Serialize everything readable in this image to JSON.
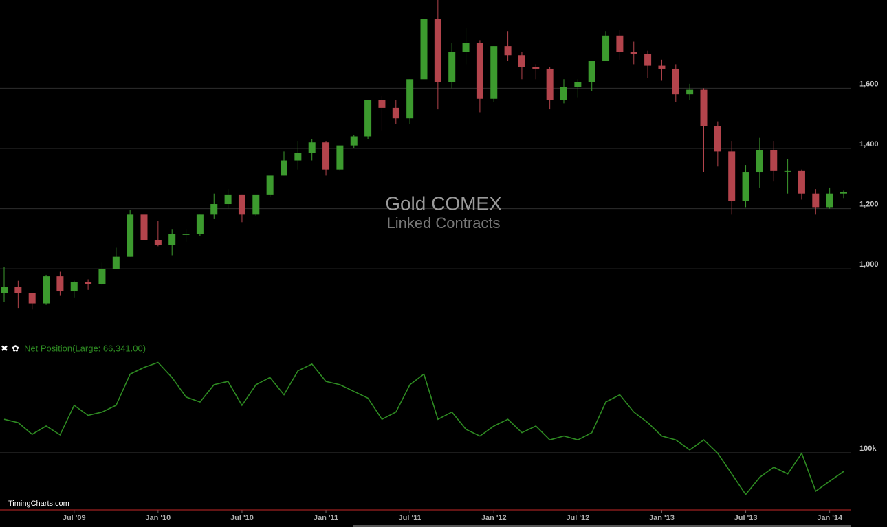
{
  "watermark": "TimingCharts.com",
  "chart_data": [
    {
      "type": "candlestick",
      "title": "Gold COMEX",
      "subtitle": "Linked Contracts",
      "x": [
        "2009-02",
        "2009-03",
        "2009-04",
        "2009-05",
        "2009-06",
        "2009-07",
        "2009-08",
        "2009-09",
        "2009-10",
        "2009-11",
        "2009-12",
        "2010-01",
        "2010-02",
        "2010-03",
        "2010-04",
        "2010-05",
        "2010-06",
        "2010-07",
        "2010-08",
        "2010-09",
        "2010-10",
        "2010-11",
        "2010-12",
        "2011-01",
        "2011-02",
        "2011-03",
        "2011-04",
        "2011-05",
        "2011-06",
        "2011-07",
        "2011-08",
        "2011-09",
        "2011-10",
        "2011-11",
        "2011-12",
        "2012-01",
        "2012-02",
        "2012-03",
        "2012-04",
        "2012-05",
        "2012-06",
        "2012-07",
        "2012-08",
        "2012-09",
        "2012-10",
        "2012-11",
        "2012-12",
        "2013-01",
        "2013-02",
        "2013-03",
        "2013-04",
        "2013-05",
        "2013-06",
        "2013-07",
        "2013-08",
        "2013-09",
        "2013-10",
        "2013-11",
        "2013-12",
        "2014-01",
        "2014-02"
      ],
      "open": [
        920,
        940,
        920,
        885,
        975,
        925,
        955,
        950,
        1000,
        1040,
        1180,
        1095,
        1080,
        1115,
        1115,
        1180,
        1215,
        1245,
        1180,
        1245,
        1310,
        1360,
        1385,
        1420,
        1330,
        1410,
        1440,
        1560,
        1535,
        1500,
        1630,
        1830,
        1620,
        1720,
        1750,
        1565,
        1740,
        1710,
        1670,
        1665,
        1560,
        1605,
        1620,
        1690,
        1775,
        1720,
        1715,
        1675,
        1665,
        1580,
        1595,
        1475,
        1390,
        1225,
        1320,
        1395,
        1325,
        1325,
        1250,
        1205,
        1250
      ],
      "high": [
        1005,
        960,
        920,
        980,
        990,
        960,
        965,
        1020,
        1070,
        1195,
        1225,
        1160,
        1130,
        1130,
        1180,
        1250,
        1265,
        1245,
        1240,
        1310,
        1390,
        1425,
        1430,
        1425,
        1410,
        1445,
        1560,
        1575,
        1560,
        1630,
        1900,
        1920,
        1750,
        1800,
        1760,
        1740,
        1790,
        1720,
        1680,
        1670,
        1630,
        1630,
        1690,
        1790,
        1795,
        1755,
        1725,
        1695,
        1680,
        1615,
        1600,
        1490,
        1425,
        1345,
        1435,
        1425,
        1365,
        1330,
        1265,
        1270,
        1260
      ],
      "low": [
        890,
        870,
        865,
        880,
        910,
        905,
        930,
        945,
        1000,
        1040,
        1080,
        1075,
        1045,
        1090,
        1110,
        1165,
        1200,
        1155,
        1175,
        1240,
        1310,
        1330,
        1360,
        1310,
        1325,
        1400,
        1430,
        1460,
        1480,
        1480,
        1620,
        1530,
        1600,
        1680,
        1520,
        1555,
        1690,
        1630,
        1630,
        1530,
        1550,
        1570,
        1590,
        1690,
        1695,
        1680,
        1635,
        1625,
        1555,
        1560,
        1320,
        1340,
        1180,
        1205,
        1270,
        1290,
        1250,
        1230,
        1180,
        1200,
        1235
      ],
      "close": [
        940,
        920,
        885,
        975,
        925,
        955,
        950,
        1000,
        1040,
        1180,
        1095,
        1080,
        1115,
        1115,
        1180,
        1215,
        1245,
        1180,
        1245,
        1310,
        1360,
        1385,
        1420,
        1330,
        1410,
        1440,
        1560,
        1535,
        1500,
        1630,
        1830,
        1620,
        1720,
        1750,
        1565,
        1740,
        1710,
        1670,
        1665,
        1560,
        1605,
        1620,
        1690,
        1775,
        1720,
        1715,
        1675,
        1665,
        1580,
        1595,
        1475,
        1390,
        1225,
        1320,
        1395,
        1325,
        1325,
        1250,
        1205,
        1250,
        1255
      ],
      "up_color": "#3c9a2e",
      "down_color": "#b3444c",
      "xlim": [
        "2009-02",
        "2014-02"
      ],
      "ylim": [
        820,
        1875
      ],
      "yticks": [
        {
          "value": 1000,
          "label": "1,000"
        },
        {
          "value": 1200,
          "label": "1,200"
        },
        {
          "value": 1400,
          "label": "1,400"
        },
        {
          "value": 1600,
          "label": "1,600"
        }
      ],
      "grid": true
    },
    {
      "type": "line",
      "x": [
        "2009-02",
        "2009-03",
        "2009-04",
        "2009-05",
        "2009-06",
        "2009-07",
        "2009-08",
        "2009-09",
        "2009-10",
        "2009-11",
        "2009-12",
        "2010-01",
        "2010-02",
        "2010-03",
        "2010-04",
        "2010-05",
        "2010-06",
        "2010-07",
        "2010-08",
        "2010-09",
        "2010-10",
        "2010-11",
        "2010-12",
        "2011-01",
        "2011-02",
        "2011-03",
        "2011-04",
        "2011-05",
        "2011-06",
        "2011-07",
        "2011-08",
        "2011-09",
        "2011-10",
        "2011-11",
        "2011-12",
        "2012-01",
        "2012-02",
        "2012-03",
        "2012-04",
        "2012-05",
        "2012-06",
        "2012-07",
        "2012-08",
        "2012-09",
        "2012-10",
        "2012-11",
        "2012-12",
        "2013-01",
        "2013-02",
        "2013-03",
        "2013-04",
        "2013-05",
        "2013-06",
        "2013-07",
        "2013-08",
        "2013-09",
        "2013-10",
        "2013-11",
        "2013-12",
        "2014-01",
        "2014-02"
      ],
      "series": [
        {
          "name": "Net Position(Large: 66,341.00)",
          "color": "#2e8b22",
          "values": [
            160000,
            154000,
            133000,
            148000,
            132000,
            185000,
            167000,
            173000,
            185000,
            241000,
            253000,
            262000,
            235000,
            200000,
            191000,
            222000,
            228000,
            185000,
            222000,
            235000,
            204000,
            247000,
            259000,
            228000,
            222000,
            210000,
            198000,
            160000,
            173000,
            222000,
            241000,
            160000,
            173000,
            142000,
            130000,
            148000,
            160000,
            136000,
            148000,
            123000,
            130000,
            123000,
            136000,
            191000,
            204000,
            173000,
            154000,
            130000,
            123000,
            105000,
            123000,
            99000,
            62000,
            25000,
            56000,
            74000,
            62000,
            99000,
            31000,
            49000,
            66341
          ]
        }
      ],
      "xlim": [
        "2009-02",
        "2014-02"
      ],
      "ylim": [
        0,
        270000
      ],
      "yticks": [
        {
          "value": 100000,
          "label": "100k"
        }
      ],
      "xticks": [
        {
          "value": "2009-07",
          "label": "Jul '09"
        },
        {
          "value": "2010-01",
          "label": "Jan '10"
        },
        {
          "value": "2010-07",
          "label": "Jul '10"
        },
        {
          "value": "2011-01",
          "label": "Jan '11"
        },
        {
          "value": "2011-07",
          "label": "Jul '11"
        },
        {
          "value": "2012-01",
          "label": "Jan '12"
        },
        {
          "value": "2012-07",
          "label": "Jul '12"
        },
        {
          "value": "2013-01",
          "label": "Jan '13"
        },
        {
          "value": "2013-07",
          "label": "Jul '13"
        },
        {
          "value": "2014-01",
          "label": "Jan '14"
        }
      ],
      "grid": true
    }
  ]
}
